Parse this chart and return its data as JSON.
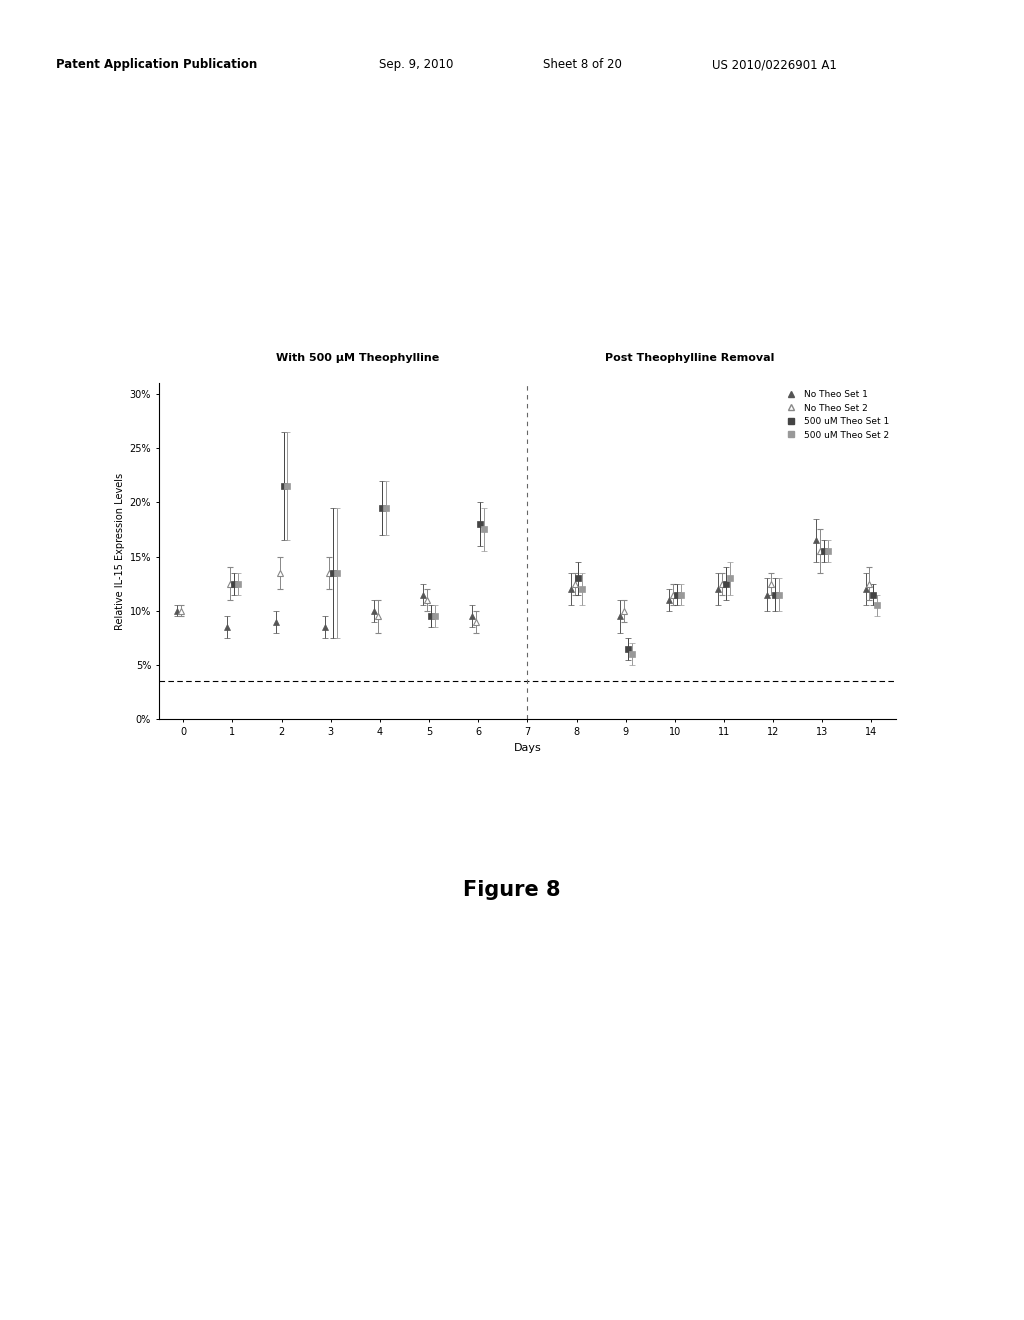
{
  "title_left": "With 500 μM Theophylline",
  "title_right": "Post Theophylline Removal",
  "xlabel": "Days",
  "ylabel": "Relative IL-15 Expression Levels",
  "ylim": [
    0,
    0.31
  ],
  "yticks": [
    0.0,
    0.05,
    0.1,
    0.15,
    0.2,
    0.25,
    0.3
  ],
  "ytick_labels": [
    "0%",
    "5%",
    "10%",
    "15%",
    "20%",
    "25%",
    "30%"
  ],
  "xticks": [
    0,
    1,
    2,
    3,
    4,
    5,
    6,
    7,
    8,
    9,
    10,
    11,
    12,
    13,
    14
  ],
  "dashed_line_y": 0.035,
  "vline_x": 7,
  "no_theo_s1_x": [
    0,
    1,
    2,
    3,
    4,
    5,
    6,
    8,
    9,
    10,
    11,
    12,
    13,
    14
  ],
  "no_theo_s1_y": [
    0.1,
    0.085,
    0.09,
    0.085,
    0.1,
    0.115,
    0.095,
    0.12,
    0.095,
    0.11,
    0.12,
    0.115,
    0.165,
    0.12
  ],
  "no_theo_s1_ye": [
    0.005,
    0.01,
    0.01,
    0.01,
    0.01,
    0.01,
    0.01,
    0.015,
    0.015,
    0.01,
    0.015,
    0.015,
    0.02,
    0.015
  ],
  "no_theo_s2_x": [
    0,
    1,
    2,
    3,
    4,
    5,
    6,
    8,
    9,
    10,
    11,
    12,
    13,
    14
  ],
  "no_theo_s2_y": [
    0.1,
    0.125,
    0.135,
    0.135,
    0.095,
    0.11,
    0.09,
    0.125,
    0.1,
    0.115,
    0.125,
    0.125,
    0.155,
    0.125
  ],
  "no_theo_s2_ye": [
    0.005,
    0.015,
    0.015,
    0.015,
    0.015,
    0.01,
    0.01,
    0.01,
    0.01,
    0.01,
    0.01,
    0.01,
    0.02,
    0.015
  ],
  "theo_s1_x": [
    1,
    2,
    3,
    4,
    5,
    6,
    8,
    9,
    10,
    11,
    12,
    13,
    14
  ],
  "theo_s1_y": [
    0.125,
    0.215,
    0.135,
    0.195,
    0.095,
    0.18,
    0.13,
    0.065,
    0.115,
    0.125,
    0.115,
    0.155,
    0.115
  ],
  "theo_s1_ye": [
    0.01,
    0.05,
    0.06,
    0.025,
    0.01,
    0.02,
    0.015,
    0.01,
    0.01,
    0.015,
    0.015,
    0.01,
    0.01
  ],
  "theo_s2_x": [
    1,
    2,
    3,
    4,
    5,
    6,
    8,
    9,
    10,
    11,
    12,
    13,
    14
  ],
  "theo_s2_y": [
    0.125,
    0.215,
    0.135,
    0.195,
    0.095,
    0.175,
    0.12,
    0.06,
    0.115,
    0.13,
    0.115,
    0.155,
    0.105
  ],
  "theo_s2_ye": [
    0.01,
    0.05,
    0.06,
    0.025,
    0.01,
    0.02,
    0.015,
    0.01,
    0.01,
    0.015,
    0.015,
    0.01,
    0.01
  ],
  "color_dark": "#555555",
  "color_mid": "#888888",
  "color_sq_dark": "#444444",
  "color_sq_mid": "#999999",
  "legend_entries": [
    "No Theo Set 1",
    "No Theo Set 2",
    "500 uM Theo Set 1",
    "500 uM Theo Set 2"
  ],
  "fig_caption": "Figure 8",
  "header_pub": "Patent Application Publication",
  "header_date": "Sep. 9, 2010",
  "header_sheet": "Sheet 8 of 20",
  "header_us": "US 2010/0226901 A1"
}
